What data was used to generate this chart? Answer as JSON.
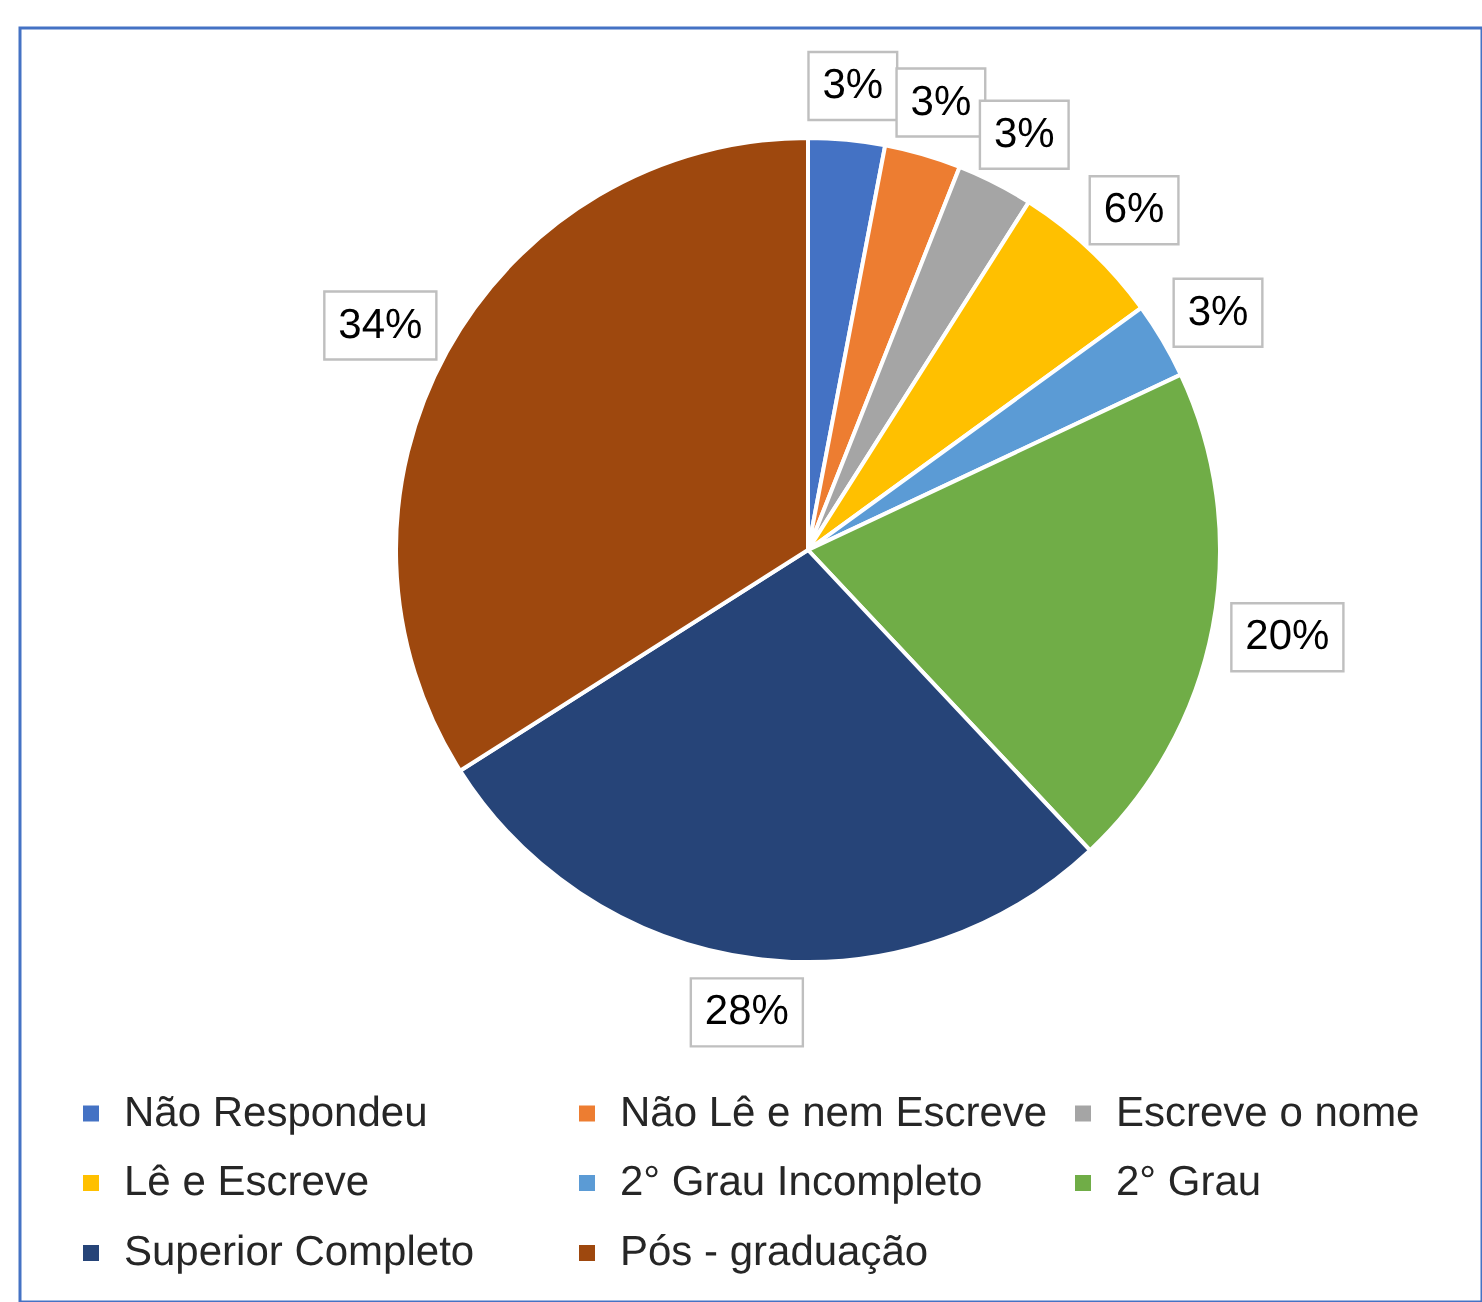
{
  "chart_data": {
    "type": "pie",
    "categories": [
      "Não Respondeu",
      "Não Lê e nem Escreve",
      "Escreve o nome",
      "Lê e Escreve",
      "2° Grau Incompleto",
      "2° Grau",
      "Superior Completo",
      "Pós - graduação"
    ],
    "values": [
      3,
      3,
      3,
      6,
      3,
      20,
      28,
      34
    ],
    "colors": [
      "#4472c4",
      "#ed7d31",
      "#a5a5a5",
      "#ffc000",
      "#5b9bd5",
      "#70ad47",
      "#264478",
      "#9e480e"
    ],
    "value_labels": [
      "3%",
      "3%",
      "3%",
      "6%",
      "3%",
      "20%",
      "28%",
      "34%"
    ],
    "legend": "bottom"
  }
}
